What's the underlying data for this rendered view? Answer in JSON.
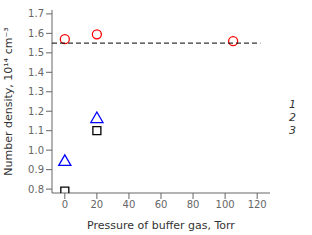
{
  "chart_data": {
    "type": "scatter",
    "xlabel": "Pressure of buffer gas, Torr",
    "ylabel": "Number density, 10¹⁴ cm⁻³",
    "series": [
      {
        "name": "1",
        "color": "black",
        "marker": "square",
        "x": [
          0,
          20
        ],
        "values": [
          0.79,
          1.1
        ]
      },
      {
        "name": "2",
        "color": "blue",
        "marker": "triangle",
        "x": [
          0,
          20
        ],
        "values": [
          0.94,
          1.16
        ]
      },
      {
        "name": "3",
        "color": "red",
        "marker": "circle",
        "x": [
          0,
          20,
          105
        ],
        "values": [
          1.57,
          1.595,
          1.56
        ]
      },
      {
        "type": "line",
        "color": "black",
        "line_style": "dashed",
        "x": [
          -8,
          122
        ],
        "values": [
          1.55,
          1.55
        ]
      }
    ],
    "xlim": [
      -8,
      128
    ],
    "ylim": [
      0.78,
      1.72
    ],
    "xticks": [
      0,
      20,
      40,
      60,
      80,
      100,
      120
    ],
    "yticks": [
      0.8,
      0.9,
      {
        "value": 1.0,
        "label": "1.0"
      },
      1.1,
      1.2,
      1.3,
      1.4,
      1.5,
      1.6,
      1.7
    ],
    "grid": false,
    "legend": "right"
  }
}
